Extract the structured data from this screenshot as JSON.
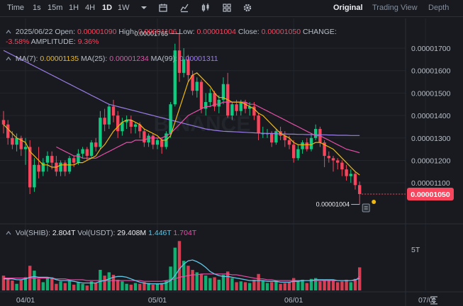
{
  "toolbar": {
    "intervals": [
      "Time",
      "1s",
      "15m",
      "1H",
      "4H",
      "1D",
      "1W"
    ],
    "active_interval": "1D",
    "views": [
      "Original",
      "Trading View",
      "Depth"
    ],
    "active_view": "Original"
  },
  "ohlc": {
    "date": "2025/06/22",
    "open_label": "Open:",
    "open": "0.00001090",
    "high_label": "High:",
    "high": "0.00001106",
    "low_label": "Low:",
    "low": "0.00001004",
    "close_label": "Close:",
    "close": "0.00001050",
    "change_label": "CHANGE:",
    "change": "-3.58%",
    "amplitude_label": "AMPLITUDE:",
    "amplitude": "9.36%"
  },
  "ma": {
    "ma7_label": "MA(7):",
    "ma7": "0.00001135",
    "ma25_label": "MA(25):",
    "ma25": "0.00001234",
    "ma99_label": "MA(99):",
    "ma99": "0.00001311"
  },
  "vol": {
    "shib_label": "Vol(SHIB):",
    "shib": "2.804T",
    "usdt_label": "Vol(USDT):",
    "usdt": "29.408M",
    "ma1": "1.446T",
    "ma2": "1.704T"
  },
  "annotations": {
    "high_label": "0.00001765",
    "low_label": "0.00001004",
    "last_price": "0.00001050"
  },
  "colors": {
    "up": "#0ecb81",
    "down": "#f6465d",
    "ma7": "#f0b90b",
    "ma25": "#e750a8",
    "ma99": "#9b7ee6",
    "vol_ma1": "#5fc6e6",
    "vol_ma2": "#e750a8"
  },
  "chart_data": {
    "type": "candlestick",
    "symbol": "SHIBUSDT",
    "x_ticks": [
      "04/01",
      "05/01",
      "06/01",
      "07/0"
    ],
    "x_tick_index": [
      5,
      35,
      66,
      96
    ],
    "y_ticks": [
      "0.00001700",
      "0.00001600",
      "0.00001500",
      "0.00001400",
      "0.00001300",
      "0.00001200",
      "0.00001100"
    ],
    "y_tick_values": [
      1.7e-05,
      1.6e-05,
      1.5e-05,
      1.4e-05,
      1.3e-05,
      1.2e-05,
      1.1e-05
    ],
    "ylim": [
      9.3e-06,
      1.82e-05
    ],
    "vol_tick": "5T",
    "vol_tick_value": 5,
    "vol_max": 6.2,
    "candles": [
      [
        1.38,
        1.36,
        1.42,
        1.32
      ],
      [
        1.36,
        1.3,
        1.38,
        1.27
      ],
      [
        1.3,
        1.27,
        1.33,
        1.25
      ],
      [
        1.27,
        1.3,
        1.32,
        1.24
      ],
      [
        1.3,
        1.25,
        1.31,
        1.22
      ],
      [
        1.25,
        1.26,
        1.3,
        1.18
      ],
      [
        1.26,
        1.08,
        1.29,
        1.05
      ],
      [
        1.08,
        1.18,
        1.21,
        1.06
      ],
      [
        1.18,
        1.15,
        1.26,
        1.12
      ],
      [
        1.15,
        1.19,
        1.21,
        1.13
      ],
      [
        1.19,
        1.22,
        1.24,
        1.15
      ],
      [
        1.22,
        1.19,
        1.24,
        1.16
      ],
      [
        1.19,
        1.15,
        1.22,
        1.13
      ],
      [
        1.15,
        1.19,
        1.2,
        1.13
      ],
      [
        1.19,
        1.15,
        1.2,
        1.13
      ],
      [
        1.15,
        1.21,
        1.22,
        1.14
      ],
      [
        1.21,
        1.19,
        1.22,
        1.17
      ],
      [
        1.19,
        1.23,
        1.25,
        1.18
      ],
      [
        1.23,
        1.25,
        1.26,
        1.21
      ],
      [
        1.25,
        1.22,
        1.26,
        1.2
      ],
      [
        1.22,
        1.28,
        1.29,
        1.21
      ],
      [
        1.28,
        1.26,
        1.3,
        1.24
      ],
      [
        1.26,
        1.39,
        1.42,
        1.25
      ],
      [
        1.39,
        1.36,
        1.43,
        1.33
      ],
      [
        1.36,
        1.44,
        1.45,
        1.34
      ],
      [
        1.44,
        1.4,
        1.47,
        1.37
      ],
      [
        1.4,
        1.33,
        1.42,
        1.3
      ],
      [
        1.33,
        1.37,
        1.39,
        1.31
      ],
      [
        1.37,
        1.38,
        1.4,
        1.34
      ],
      [
        1.38,
        1.35,
        1.4,
        1.32
      ],
      [
        1.35,
        1.36,
        1.37,
        1.32
      ],
      [
        1.36,
        1.33,
        1.37,
        1.3
      ],
      [
        1.33,
        1.28,
        1.34,
        1.26
      ],
      [
        1.28,
        1.31,
        1.32,
        1.26
      ],
      [
        1.31,
        1.27,
        1.32,
        1.25
      ],
      [
        1.27,
        1.29,
        1.3,
        1.25
      ],
      [
        1.29,
        1.26,
        1.3,
        1.23
      ],
      [
        1.26,
        1.32,
        1.33,
        1.25
      ],
      [
        1.32,
        1.45,
        1.46,
        1.3
      ],
      [
        1.45,
        1.69,
        1.72,
        1.44
      ],
      [
        1.69,
        1.59,
        1.765,
        1.55
      ],
      [
        1.59,
        1.65,
        1.7,
        1.57
      ],
      [
        1.65,
        1.58,
        1.67,
        1.55
      ],
      [
        1.58,
        1.51,
        1.6,
        1.49
      ],
      [
        1.51,
        1.55,
        1.57,
        1.48
      ],
      [
        1.55,
        1.43,
        1.56,
        1.41
      ],
      [
        1.43,
        1.46,
        1.5,
        1.4
      ],
      [
        1.46,
        1.5,
        1.52,
        1.44
      ],
      [
        1.5,
        1.44,
        1.51,
        1.42
      ],
      [
        1.44,
        1.47,
        1.49,
        1.41
      ],
      [
        1.47,
        1.54,
        1.57,
        1.45
      ],
      [
        1.54,
        1.4,
        1.59,
        1.39
      ],
      [
        1.4,
        1.45,
        1.46,
        1.38
      ],
      [
        1.45,
        1.42,
        1.47,
        1.4
      ],
      [
        1.42,
        1.46,
        1.47,
        1.4
      ],
      [
        1.46,
        1.43,
        1.47,
        1.41
      ],
      [
        1.43,
        1.44,
        1.46,
        1.4
      ],
      [
        1.44,
        1.4,
        1.46,
        1.38
      ],
      [
        1.4,
        1.32,
        1.41,
        1.29
      ],
      [
        1.32,
        1.32,
        1.35,
        1.3
      ],
      [
        1.32,
        1.32,
        1.34,
        1.3
      ],
      [
        1.32,
        1.28,
        1.33,
        1.26
      ],
      [
        1.28,
        1.33,
        1.34,
        1.27
      ],
      [
        1.33,
        1.31,
        1.35,
        1.29
      ],
      [
        1.31,
        1.29,
        1.33,
        1.26
      ],
      [
        1.29,
        1.27,
        1.31,
        1.25
      ],
      [
        1.27,
        1.21,
        1.29,
        1.19
      ],
      [
        1.21,
        1.25,
        1.27,
        1.2
      ],
      [
        1.25,
        1.28,
        1.29,
        1.23
      ],
      [
        1.28,
        1.25,
        1.3,
        1.24
      ],
      [
        1.25,
        1.3,
        1.32,
        1.24
      ],
      [
        1.3,
        1.34,
        1.36,
        1.29
      ],
      [
        1.34,
        1.28,
        1.35,
        1.26
      ],
      [
        1.28,
        1.22,
        1.29,
        1.17
      ],
      [
        1.22,
        1.21,
        1.24,
        1.19
      ],
      [
        1.21,
        1.2,
        1.22,
        1.15
      ],
      [
        1.2,
        1.19,
        1.21,
        1.16
      ],
      [
        1.19,
        1.16,
        1.2,
        1.13
      ],
      [
        1.16,
        1.13,
        1.18,
        1.11
      ],
      [
        1.13,
        1.14,
        1.16,
        1.1
      ],
      [
        1.14,
        1.09,
        1.15,
        1.07
      ],
      [
        1.09,
        1.05,
        1.106,
        1.004
      ]
    ],
    "ma7": [
      1.36,
      1.34,
      1.32,
      1.3,
      1.29,
      1.28,
      1.24,
      1.22,
      1.2,
      1.18,
      1.18,
      1.17,
      1.17,
      1.18,
      1.18,
      1.18,
      1.18,
      1.19,
      1.19,
      1.2,
      1.21,
      1.22,
      1.25,
      1.27,
      1.3,
      1.33,
      1.35,
      1.37,
      1.38,
      1.38,
      1.37,
      1.36,
      1.34,
      1.33,
      1.32,
      1.31,
      1.29,
      1.29,
      1.31,
      1.37,
      1.43,
      1.49,
      1.55,
      1.58,
      1.59,
      1.57,
      1.55,
      1.53,
      1.5,
      1.48,
      1.48,
      1.47,
      1.46,
      1.46,
      1.46,
      1.45,
      1.44,
      1.43,
      1.41,
      1.4,
      1.38,
      1.36,
      1.34,
      1.32,
      1.31,
      1.3,
      1.28,
      1.27,
      1.27,
      1.27,
      1.27,
      1.28,
      1.28,
      1.27,
      1.26,
      1.25,
      1.23,
      1.21,
      1.19,
      1.17,
      1.15,
      1.135
    ],
    "ma25": [
      null,
      null,
      null,
      null,
      null,
      null,
      null,
      null,
      null,
      null,
      null,
      null,
      1.26,
      1.25,
      1.24,
      1.23,
      1.22,
      1.22,
      1.21,
      1.21,
      1.21,
      1.21,
      1.22,
      1.23,
      1.24,
      1.25,
      1.26,
      1.27,
      1.28,
      1.28,
      1.29,
      1.29,
      1.29,
      1.3,
      1.3,
      1.3,
      1.3,
      1.31,
      1.32,
      1.34,
      1.36,
      1.38,
      1.4,
      1.41,
      1.42,
      1.43,
      1.44,
      1.44,
      1.45,
      1.45,
      1.46,
      1.46,
      1.46,
      1.46,
      1.46,
      1.46,
      1.45,
      1.45,
      1.44,
      1.43,
      1.42,
      1.41,
      1.4,
      1.39,
      1.38,
      1.37,
      1.36,
      1.35,
      1.34,
      1.33,
      1.32,
      1.31,
      1.31,
      1.3,
      1.29,
      1.28,
      1.27,
      1.26,
      1.25,
      1.245,
      1.24,
      1.234
    ],
    "ma99": [
      1.69,
      1.68,
      1.67,
      1.66,
      1.65,
      1.64,
      1.63,
      1.62,
      1.61,
      1.6,
      1.59,
      1.58,
      1.57,
      1.56,
      1.55,
      1.54,
      1.53,
      1.52,
      1.51,
      1.5,
      1.49,
      1.48,
      1.47,
      1.46,
      1.45,
      1.445,
      1.44,
      1.435,
      1.43,
      1.425,
      1.42,
      1.415,
      1.41,
      1.405,
      1.4,
      1.395,
      1.39,
      1.385,
      1.38,
      1.375,
      1.37,
      1.365,
      1.36,
      1.355,
      1.35,
      1.345,
      1.34,
      1.337,
      1.334,
      1.332,
      1.33,
      1.329,
      1.328,
      1.327,
      1.326,
      1.325,
      1.324,
      1.323,
      1.322,
      1.321,
      1.32,
      1.32,
      1.319,
      1.318,
      1.318,
      1.317,
      1.317,
      1.316,
      1.316,
      1.315,
      1.315,
      1.315,
      1.314,
      1.314,
      1.313,
      1.313,
      1.312,
      1.312,
      1.312,
      1.311,
      1.311,
      1.311
    ],
    "volume": [
      1.8,
      1.5,
      1.2,
      0.8,
      1.3,
      1.6,
      3.0,
      2.4,
      1.4,
      1.0,
      1.5,
      1.6,
      0.8,
      1.1,
      0.9,
      1.2,
      0.7,
      1.0,
      0.8,
      0.6,
      1.1,
      0.9,
      2.5,
      1.8,
      2.2,
      1.9,
      1.3,
      1.1,
      0.8,
      0.7,
      0.9,
      0.8,
      1.0,
      0.9,
      0.7,
      0.8,
      0.9,
      1.2,
      2.9,
      5.2,
      6.0,
      3.6,
      3.0,
      2.5,
      2.2,
      2.0,
      1.8,
      1.5,
      1.6,
      1.3,
      1.9,
      2.3,
      1.5,
      1.0,
      1.1,
      1.0,
      0.9,
      1.3,
      2.0,
      1.2,
      0.9,
      1.0,
      1.2,
      0.8,
      0.9,
      1.0,
      1.5,
      1.2,
      1.3,
      0.9,
      1.4,
      1.5,
      1.1,
      1.2,
      1.3,
      1.2,
      1.0,
      1.1,
      1.3,
      1.0,
      1.4,
      2.804
    ],
    "vol_ma1": [
      1.4,
      1.4,
      1.4,
      1.3,
      1.3,
      1.4,
      1.6,
      1.7,
      1.6,
      1.6,
      1.6,
      1.5,
      1.3,
      1.2,
      1.2,
      1.2,
      1.1,
      1.0,
      0.9,
      0.9,
      0.9,
      0.9,
      1.1,
      1.2,
      1.4,
      1.6,
      1.7,
      1.7,
      1.6,
      1.4,
      1.2,
      1.0,
      0.9,
      0.8,
      0.8,
      0.8,
      0.8,
      0.9,
      1.2,
      1.8,
      2.6,
      3.2,
      3.6,
      3.7,
      3.5,
      3.2,
      2.8,
      2.3,
      2.0,
      1.8,
      1.7,
      1.7,
      1.6,
      1.5,
      1.4,
      1.3,
      1.2,
      1.2,
      1.2,
      1.2,
      1.1,
      1.1,
      1.1,
      1.0,
      1.0,
      1.0,
      1.1,
      1.1,
      1.2,
      1.2,
      1.2,
      1.3,
      1.3,
      1.3,
      1.3,
      1.3,
      1.2,
      1.2,
      1.2,
      1.2,
      1.3,
      1.446
    ],
    "vol_ma2": [
      1.5,
      1.5,
      1.5,
      1.5,
      1.5,
      1.5,
      1.5,
      1.5,
      1.5,
      1.5,
      1.5,
      1.5,
      1.4,
      1.4,
      1.4,
      1.3,
      1.3,
      1.3,
      1.3,
      1.2,
      1.2,
      1.2,
      1.2,
      1.2,
      1.2,
      1.2,
      1.2,
      1.2,
      1.2,
      1.2,
      1.2,
      1.2,
      1.1,
      1.1,
      1.1,
      1.1,
      1.1,
      1.2,
      1.3,
      1.4,
      1.6,
      1.7,
      1.8,
      1.9,
      1.9,
      2.0,
      2.0,
      2.0,
      2.0,
      2.0,
      2.0,
      2.0,
      1.9,
      1.9,
      1.8,
      1.7,
      1.6,
      1.5,
      1.4,
      1.4,
      1.3,
      1.3,
      1.2,
      1.2,
      1.2,
      1.2,
      1.2,
      1.2,
      1.2,
      1.2,
      1.2,
      1.2,
      1.2,
      1.2,
      1.2,
      1.2,
      1.2,
      1.2,
      1.2,
      1.2,
      1.2,
      1.704
    ],
    "price_scale": 1e-05
  }
}
